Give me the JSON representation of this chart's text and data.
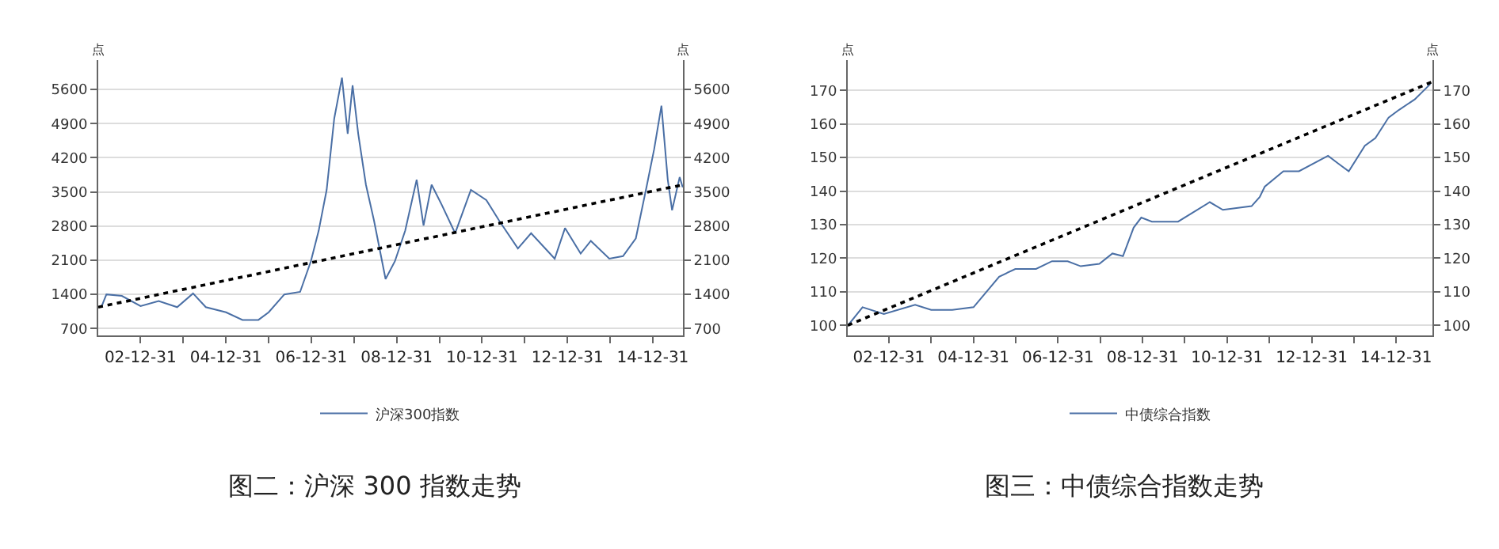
{
  "chart_data": [
    {
      "type": "line",
      "title": "图二：沪深 300 指数走势",
      "ylabel": "点",
      "y2label": "点",
      "legend": "bottom",
      "grid": "y",
      "marker": "none",
      "xlim": [
        "2002-01-04",
        "2015-09-15"
      ],
      "xticks": [
        {
          "value": "2002-12-31",
          "label": "02-12-31"
        },
        {
          "value": "2003-12-31",
          "label": null
        },
        {
          "value": "2004-12-31",
          "label": "04-12-31"
        },
        {
          "value": "2005-12-31",
          "label": null
        },
        {
          "value": "2006-12-31",
          "label": "06-12-31"
        },
        {
          "value": "2007-12-31",
          "label": null
        },
        {
          "value": "2008-12-31",
          "label": "08-12-31"
        },
        {
          "value": "2009-12-31",
          "label": null
        },
        {
          "value": "2010-12-31",
          "label": "10-12-31"
        },
        {
          "value": "2011-12-31",
          "label": null
        },
        {
          "value": "2012-12-31",
          "label": "12-12-31"
        },
        {
          "value": "2013-12-31",
          "label": null
        },
        {
          "value": "2014-12-31",
          "label": "14-12-31"
        }
      ],
      "ylim": [
        560,
        6200
      ],
      "yticks": [
        700,
        1400,
        2100,
        2800,
        3500,
        4200,
        4900,
        5600
      ],
      "y2lim": [
        560,
        6200
      ],
      "y2ticks": [
        700,
        1400,
        2100,
        2800,
        3500,
        4200,
        4900,
        5600
      ],
      "series": [
        {
          "name": "沪深300指数",
          "color": "#4a6fa5",
          "line_style": "solid",
          "x": [
            "2002-01-30",
            "2002-03-15",
            "2002-07-25",
            "2003-01-01",
            "2003-06-05",
            "2003-11-10",
            "2004-03-25",
            "2004-07-12",
            "2005-01-01",
            "2005-05-22",
            "2005-10-05",
            "2006-01-01",
            "2006-05-15",
            "2006-09-27",
            "2006-12-28",
            "2007-03-05",
            "2007-05-12",
            "2007-07-16",
            "2007-09-20",
            "2007-11-08",
            "2007-12-20",
            "2008-02-06",
            "2008-04-12",
            "2008-06-20",
            "2008-09-27",
            "2008-12-16",
            "2009-03-14",
            "2009-06-20",
            "2009-08-18",
            "2009-10-26",
            "2010-01-22",
            "2010-05-15",
            "2010-09-27",
            "2011-02-06",
            "2011-05-26",
            "2011-11-03",
            "2012-02-24",
            "2012-09-13",
            "2012-12-10",
            "2013-04-23",
            "2013-07-19",
            "2013-12-24",
            "2014-04-20",
            "2014-08-08",
            "2014-11-07",
            "2015-01-12",
            "2015-03-15",
            "2015-05-08",
            "2015-06-14",
            "2015-08-18",
            "2015-09-13"
          ],
          "values": [
            1139,
            1400,
            1370,
            1160,
            1264,
            1139,
            1421,
            1139,
            1034,
            878,
            878,
            1034,
            1400,
            1452,
            2080,
            2706,
            3542,
            5005,
            5841,
            4692,
            5685,
            4692,
            3647,
            2915,
            1714,
            2080,
            2706,
            3751,
            2811,
            3647,
            3229,
            2654,
            3542,
            3333,
            2915,
            2341,
            2654,
            2132,
            2759,
            2236,
            2497,
            2132,
            2184,
            2550,
            3595,
            4378,
            5267,
            3751,
            3124,
            3803,
            3595
          ]
        },
        {
          "type": "line",
          "color": "#000000",
          "line_style": "dotted",
          "x": [
            "2002-01-04",
            "2015-09-15"
          ],
          "values": [
            1139,
            3646
          ]
        }
      ]
    },
    {
      "type": "line",
      "title": "图三：中债综合指数走势",
      "ylabel": "点",
      "y2label": "点",
      "legend": "bottom",
      "grid": "y",
      "marker": "none",
      "xlim": [
        "2002-01-10",
        "2015-11-10"
      ],
      "xticks": [
        {
          "value": "2002-12-31",
          "label": "02-12-31"
        },
        {
          "value": "2003-12-31",
          "label": null
        },
        {
          "value": "2004-12-31",
          "label": "04-12-31"
        },
        {
          "value": "2005-12-31",
          "label": null
        },
        {
          "value": "2006-12-31",
          "label": "06-12-31"
        },
        {
          "value": "2007-12-31",
          "label": null
        },
        {
          "value": "2008-12-31",
          "label": "08-12-31"
        },
        {
          "value": "2009-12-31",
          "label": null
        },
        {
          "value": "2010-12-31",
          "label": "10-12-31"
        },
        {
          "value": "2011-12-31",
          "label": null
        },
        {
          "value": "2012-12-31",
          "label": "12-12-31"
        },
        {
          "value": "2013-12-31",
          "label": null
        },
        {
          "value": "2014-12-31",
          "label": "14-12-31"
        }
      ],
      "ylim": [
        97,
        179
      ],
      "yticks": [
        100,
        110,
        120,
        130,
        140,
        150,
        160,
        170
      ],
      "y2lim": [
        97,
        179
      ],
      "y2ticks": [
        100,
        110,
        120,
        130,
        140,
        150,
        160,
        170
      ],
      "series": [
        {
          "name": "中债综合指数",
          "color": "#4a6fa5",
          "line_style": "solid",
          "x": [
            "2002-01-12",
            "2002-05-18",
            "2002-11-18",
            "2003-08-15",
            "2004-01-01",
            "2004-07-01",
            "2005-01-01",
            "2005-08-10",
            "2005-12-28",
            "2006-06-25",
            "2006-11-10",
            "2007-03-25",
            "2007-07-16",
            "2007-12-24",
            "2008-04-15",
            "2008-07-15",
            "2008-10-15",
            "2008-12-20",
            "2009-03-22",
            "2009-11-03",
            "2010-08-04",
            "2010-11-25",
            "2011-07-31",
            "2011-10-09",
            "2011-11-22",
            "2012-05-01",
            "2012-09-13",
            "2013-05-22",
            "2013-08-18",
            "2013-11-17",
            "2014-04-05",
            "2014-07-05",
            "2014-10-27",
            "2015-01-26",
            "2015-06-10",
            "2015-10-23"
          ],
          "values": [
            100,
            105.4,
            103.4,
            106.1,
            104.6,
            104.6,
            105.4,
            114.5,
            116.8,
            116.8,
            119.1,
            119.1,
            117.6,
            118.3,
            121.4,
            120.6,
            129.1,
            132.1,
            130.9,
            130.9,
            136.7,
            134.4,
            135.5,
            138.2,
            141.3,
            145.9,
            145.9,
            150.5,
            148.2,
            145.9,
            153.5,
            155.8,
            161.9,
            164.2,
            167.3,
            171.9
          ]
        },
        {
          "type": "line",
          "color": "#000000",
          "line_style": "dotted",
          "x": [
            "2002-01-10",
            "2015-11-05"
          ],
          "values": [
            100,
            172.5
          ]
        }
      ]
    }
  ]
}
